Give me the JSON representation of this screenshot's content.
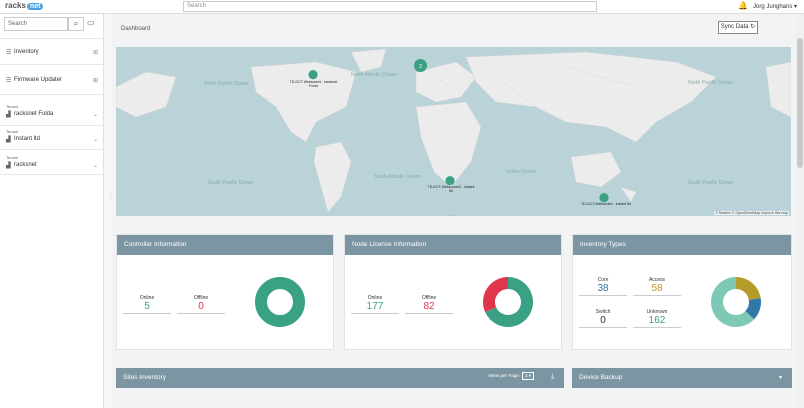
{
  "header": {
    "logo_text": "racks",
    "logo_badge": "net",
    "search_placeholder": "Search",
    "user": "Jorg Junghans ▾"
  },
  "sidebar": {
    "search_placeholder": "Search",
    "items": [
      {
        "label": "Inventory",
        "icon": "list-icon"
      },
      {
        "label": "Firmware Updater",
        "icon": "list-icon"
      }
    ],
    "tenants": [
      {
        "caption": "Tenant",
        "label": "racksnet Fulda"
      },
      {
        "caption": "Tenant",
        "label": "Instant ltd"
      },
      {
        "caption": "Tenant",
        "label": "racksnet"
      }
    ]
  },
  "main": {
    "breadcrumb": "Dashboard",
    "sync_label": "Sync Data",
    "map": {
      "labels": [
        "North Pacific Ocean",
        "North Atlantic Ocean",
        "North Pacific Ocean",
        "South Pacific Ocean",
        "South Atlantic Ocean",
        "Indian Ocean",
        "South Pacific Ocean"
      ],
      "cluster_count": "2",
      "pins": [
        "TD-DCT-Websocket - racksnet Fulda",
        "TD-DCT-Websocket2 - Instant ltd",
        "TD-DCT-Websocket - Instant ltd"
      ],
      "attribution": "© Radmin © OpenStreetMap Improve this map"
    },
    "controller": {
      "title": "Controller Information",
      "online_label": "Online",
      "online_value": "5",
      "offline_label": "Offline",
      "offline_value": "0",
      "online_fraction": 1.0
    },
    "license": {
      "title": "Node License Information",
      "online_label": "Online",
      "online_value": "177",
      "offline_label": "Offline",
      "offline_value": "82"
    },
    "inventory": {
      "title": "Inventory Types",
      "core_label": "Core",
      "core_value": "38",
      "access_label": "Access",
      "access_value": "58",
      "switch_label": "Switch",
      "switch_value": "0",
      "unknown_label": "Unknown",
      "unknown_value": "162"
    },
    "sites": {
      "title": "Sites Inventory",
      "items_per_page_label": "Items per Page:",
      "items_per_page_value": "3 ▾"
    },
    "backup": {
      "title": "Device Backup"
    }
  },
  "colors": {
    "green": "#3aa184",
    "red": "#e0364c",
    "olive": "#b59b2a",
    "blue": "#3278a7",
    "teal_light": "#7ec8b6",
    "header_bar": "#7b96a2"
  }
}
